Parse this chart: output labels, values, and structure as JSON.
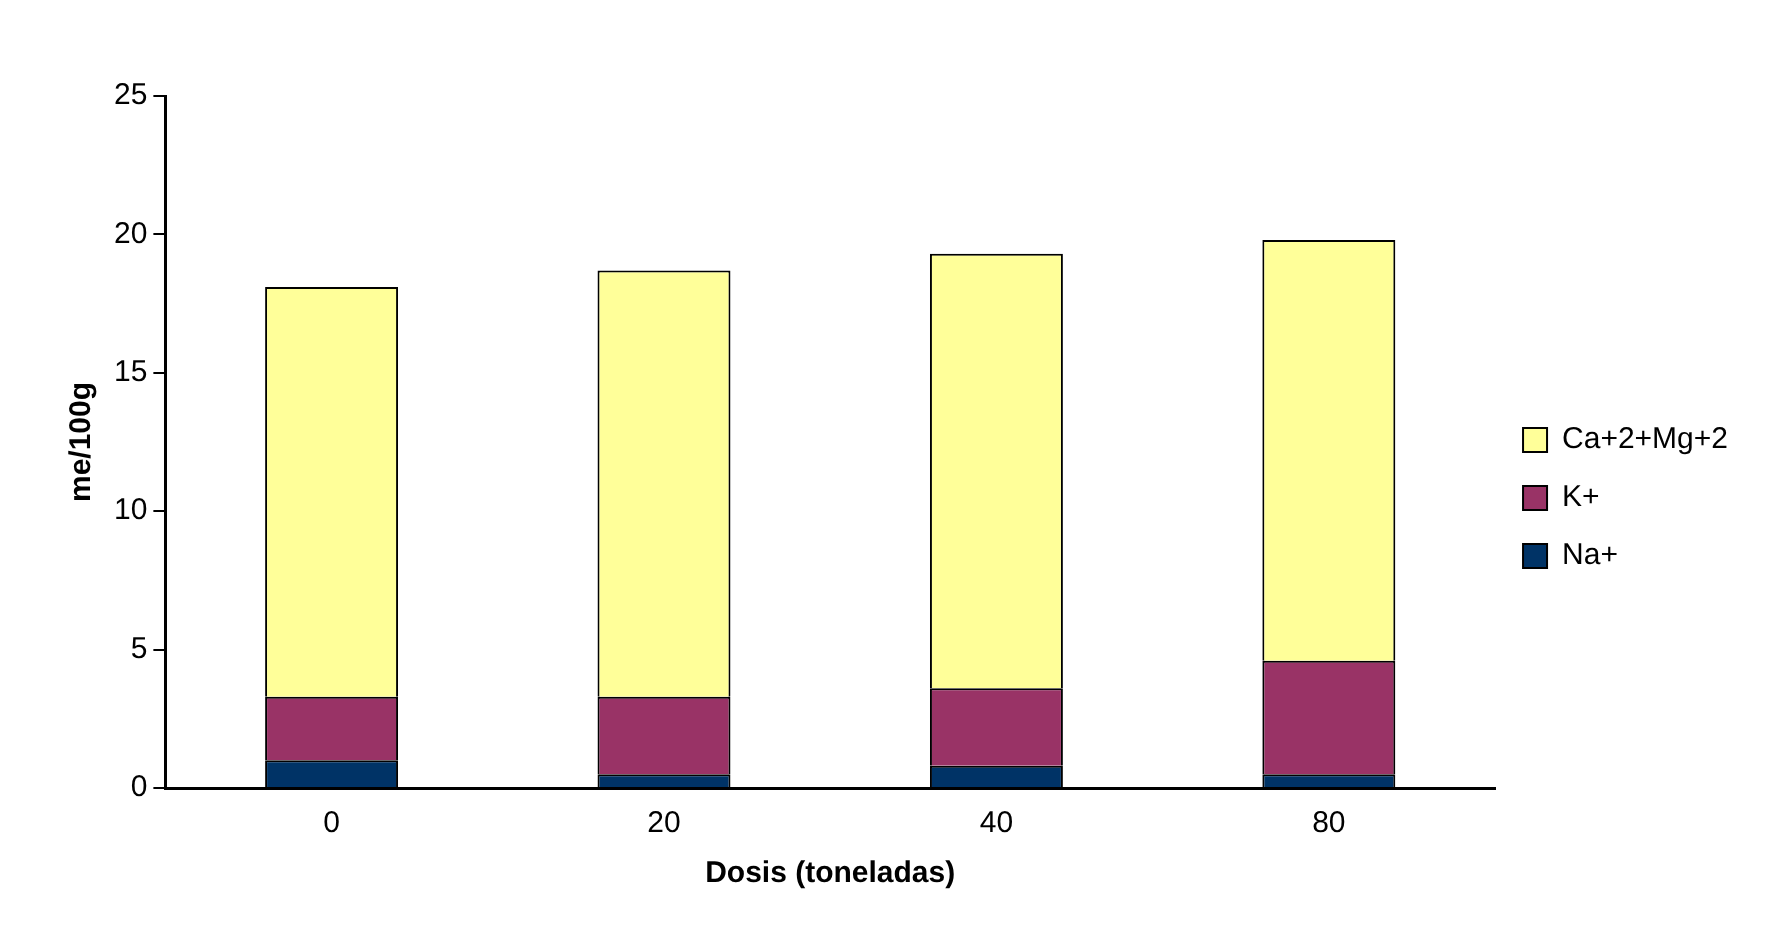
{
  "chart_data": {
    "type": "bar",
    "xlabel": "Dosis (toneladas)",
    "ylabel": "me/100g",
    "categories": [
      "0",
      "20",
      "40",
      "80"
    ],
    "stacked": true,
    "series": [
      {
        "name": "Na+",
        "color": "#003366",
        "values": [
          1.0,
          0.5,
          0.8,
          0.5
        ]
      },
      {
        "name": "K+",
        "color": "#993366",
        "values": [
          2.3,
          2.8,
          2.8,
          4.1
        ]
      },
      {
        "name": "Ca+2+Mg+2",
        "color": "#ffff99",
        "values": [
          14.8,
          15.4,
          15.7,
          15.2
        ]
      }
    ],
    "ylim": [
      0,
      25
    ],
    "yticks": [
      0,
      5,
      10,
      15,
      20,
      25
    ],
    "grid": false,
    "legend": "right"
  }
}
